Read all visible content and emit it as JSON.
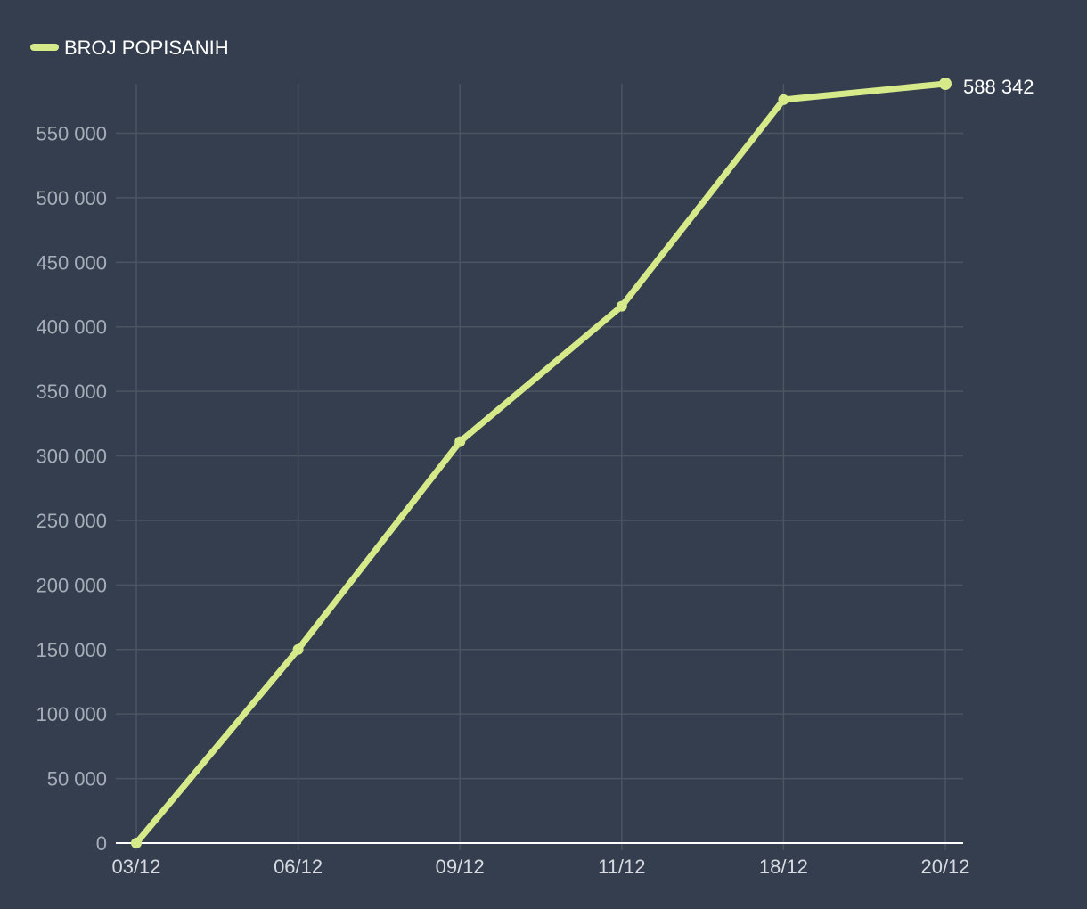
{
  "chart_data": {
    "type": "line",
    "title": "",
    "xlabel": "",
    "ylabel": "",
    "categories": [
      "03/12",
      "06/12",
      "09/12",
      "11/12",
      "18/12",
      "20/12"
    ],
    "series": [
      {
        "name": "BROJ POPISANIH",
        "color": "#d6ea8a",
        "values": [
          0,
          150000,
          311000,
          416000,
          576000,
          588342
        ]
      }
    ],
    "yticks": [
      0,
      50000,
      100000,
      150000,
      200000,
      250000,
      300000,
      350000,
      400000,
      450000,
      500000,
      550000
    ],
    "ytick_labels": [
      "0",
      "50 000",
      "100 000",
      "150 000",
      "200 000",
      "250 000",
      "300 000",
      "350 000",
      "400 000",
      "450 000",
      "500 000",
      "550 000"
    ],
    "ylim": [
      0,
      588342
    ],
    "grid": true,
    "legend_position": "top-left",
    "end_label": "588 342"
  }
}
